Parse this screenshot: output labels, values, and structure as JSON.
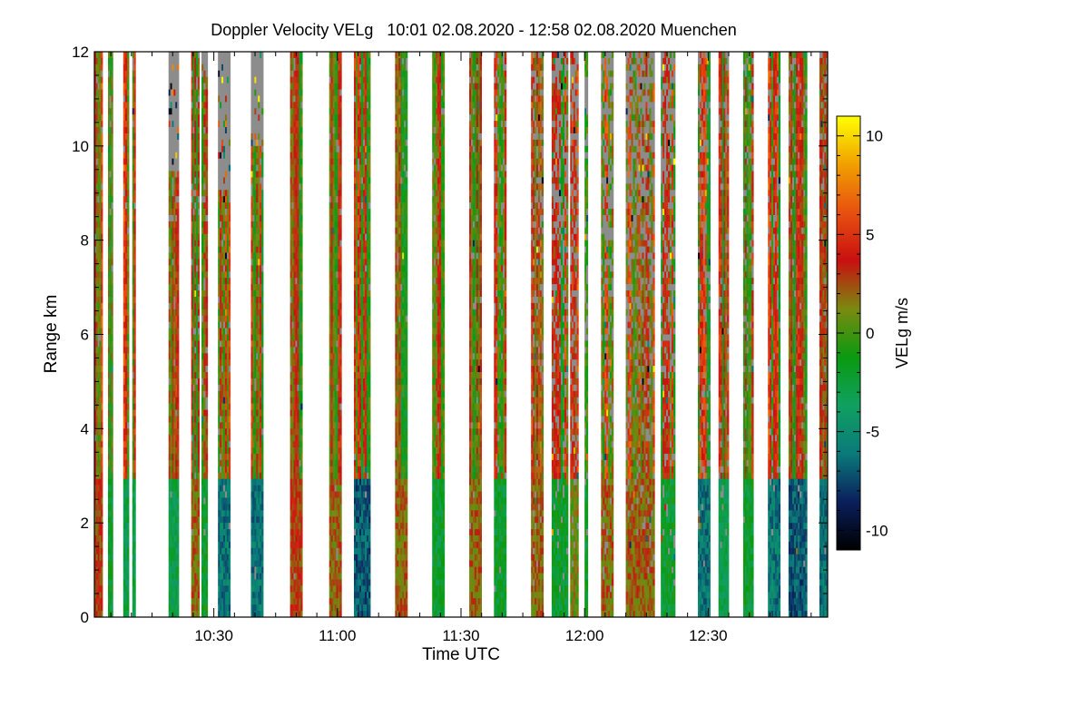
{
  "chart_data": {
    "type": "heatmap",
    "title": "Doppler Velocity VELg   10:01 02.08.2020 - 12:58 02.08.2020 Muenchen",
    "xlabel": "Time UTC",
    "ylabel": "Range km",
    "xlim_minutes_utc": [
      601,
      779
    ],
    "ylim": [
      0,
      12
    ],
    "x_ticks": [
      {
        "minutes": 630,
        "label": "10:30"
      },
      {
        "minutes": 660,
        "label": "11:00"
      },
      {
        "minutes": 690,
        "label": "11:30"
      },
      {
        "minutes": 720,
        "label": "12:00"
      },
      {
        "minutes": 750,
        "label": "12:30"
      }
    ],
    "y_ticks": [
      {
        "value": 0,
        "label": "0"
      },
      {
        "value": 2,
        "label": "2"
      },
      {
        "value": 4,
        "label": "4"
      },
      {
        "value": 6,
        "label": "6"
      },
      {
        "value": 8,
        "label": "8"
      },
      {
        "value": 10,
        "label": "10"
      },
      {
        "value": 12,
        "label": "12"
      }
    ],
    "colorbar": {
      "label": "VELg m/s",
      "range": [
        -11,
        11
      ],
      "ticks": [
        {
          "value": 10,
          "label": "10"
        },
        {
          "value": 5,
          "label": "5"
        },
        {
          "value": 0,
          "label": "0"
        },
        {
          "value": -5,
          "label": "-5"
        },
        {
          "value": -10,
          "label": "-10"
        }
      ],
      "colors": [
        "#000000",
        "#0a1f5c",
        "#0a7a7a",
        "#10a060",
        "#0a9a10",
        "#7a8a10",
        "#c81010",
        "#e85010",
        "#f0a000",
        "#ffff00"
      ]
    },
    "no_data_color": "#8c8c8c",
    "scans": [
      {
        "start": 601.0,
        "end": 603.0,
        "cloud_top": 12,
        "noise": 0.05,
        "low_vel": 3
      },
      {
        "start": 604.3,
        "end": 605.5,
        "cloud_top": 12,
        "noise": 0.05,
        "low_vel": -2
      },
      {
        "start": 608.0,
        "end": 609.4,
        "cloud_top": 12,
        "noise": 0.05,
        "low_vel": -3
      },
      {
        "start": 610.2,
        "end": 611.0,
        "cloud_top": 12,
        "noise": 0.1,
        "low_vel": -3
      },
      {
        "start": 619.0,
        "end": 621.5,
        "cloud_top": 9.5,
        "noise": 0.15,
        "low_vel": -3
      },
      {
        "start": 624.5,
        "end": 626.5,
        "cloud_top": 12,
        "noise": 0.1,
        "low_vel": 2
      },
      {
        "start": 627.0,
        "end": 628.5,
        "cloud_top": 11.5,
        "noise": 0.15,
        "low_vel": -2
      },
      {
        "start": 631.0,
        "end": 634.0,
        "cloud_top": 9.0,
        "noise": 0.15,
        "low_vel": -6
      },
      {
        "start": 639.0,
        "end": 642.0,
        "cloud_top": 10.0,
        "noise": 0.1,
        "low_vel": -6
      },
      {
        "start": 648.5,
        "end": 651.5,
        "cloud_top": 12,
        "noise": 0.05,
        "low_vel": 3
      },
      {
        "start": 658.0,
        "end": 661.0,
        "cloud_top": 12,
        "noise": 0.05,
        "low_vel": 2
      },
      {
        "start": 664.0,
        "end": 668.0,
        "cloud_top": 12,
        "noise": 0.05,
        "low_vel": -7
      },
      {
        "start": 674.0,
        "end": 677.0,
        "cloud_top": 12,
        "noise": 0.05,
        "low_vel": 2
      },
      {
        "start": 683.0,
        "end": 686.0,
        "cloud_top": 12,
        "noise": 0.05,
        "low_vel": -2
      },
      {
        "start": 692.0,
        "end": 695.0,
        "cloud_top": 12,
        "noise": 0.1,
        "low_vel": 2
      },
      {
        "start": 698.0,
        "end": 701.0,
        "cloud_top": 12,
        "noise": 0.2,
        "low_vel": -2
      },
      {
        "start": 707.0,
        "end": 710.0,
        "cloud_top": 12,
        "noise": 0.35,
        "low_vel": 2
      },
      {
        "start": 712.0,
        "end": 716.0,
        "cloud_top": 12,
        "noise": 0.5,
        "low_vel": -2
      },
      {
        "start": 716.5,
        "end": 718.5,
        "cloud_top": 12,
        "noise": 0.6,
        "low_vel": 1
      },
      {
        "start": 720.0,
        "end": 720.8,
        "cloud_top": 12,
        "noise": 0.5,
        "low_vel": -2
      },
      {
        "start": 724.0,
        "end": 727.0,
        "cloud_top": 12,
        "noise": 0.5,
        "low_vel": 2
      },
      {
        "start": 730.0,
        "end": 737.0,
        "cloud_top": 12,
        "noise": 0.55,
        "low_vel": 2
      },
      {
        "start": 738.5,
        "end": 742.0,
        "cloud_top": 12,
        "noise": 0.55,
        "low_vel": -2
      },
      {
        "start": 747.5,
        "end": 750.5,
        "cloud_top": 12,
        "noise": 0.35,
        "low_vel": -6
      },
      {
        "start": 752.5,
        "end": 755.0,
        "cloud_top": 12,
        "noise": 0.25,
        "low_vel": -3
      },
      {
        "start": 758.5,
        "end": 761.0,
        "cloud_top": 12,
        "noise": 0.2,
        "low_vel": -2
      },
      {
        "start": 764.5,
        "end": 767.5,
        "cloud_top": 12,
        "noise": 0.2,
        "low_vel": -6
      },
      {
        "start": 769.5,
        "end": 774.0,
        "cloud_top": 12,
        "noise": 0.15,
        "low_vel": -7
      },
      {
        "start": 777.0,
        "end": 779.0,
        "cloud_top": 12,
        "noise": 0.15,
        "low_vel": -6
      }
    ]
  }
}
